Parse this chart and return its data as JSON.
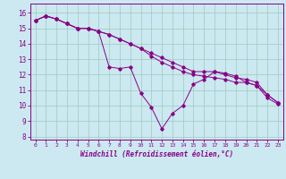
{
  "title": "",
  "xlabel": "Windchill (Refroidissement éolien,°C)",
  "background_color": "#cce8f0",
  "line_color": "#880088",
  "grid_color": "#99ccbb",
  "xlim": [
    -0.5,
    23.5
  ],
  "ylim": [
    7.8,
    16.6
  ],
  "yticks": [
    8,
    9,
    10,
    11,
    12,
    13,
    14,
    15,
    16
  ],
  "xticks": [
    0,
    1,
    2,
    3,
    4,
    5,
    6,
    7,
    8,
    9,
    10,
    11,
    12,
    13,
    14,
    15,
    16,
    17,
    18,
    19,
    20,
    21,
    22,
    23
  ],
  "series1_x": [
    0,
    1,
    2,
    3,
    4,
    5,
    6,
    7,
    8,
    9,
    10,
    11,
    12,
    13,
    14,
    15,
    16,
    17,
    18,
    19,
    20,
    21,
    22,
    23
  ],
  "series1_y": [
    15.5,
    15.8,
    15.6,
    15.3,
    15.0,
    15.0,
    14.8,
    12.5,
    12.4,
    12.5,
    10.8,
    9.9,
    8.5,
    9.5,
    10.0,
    11.4,
    11.7,
    12.2,
    12.1,
    11.9,
    11.5,
    11.3,
    10.7,
    10.2
  ],
  "series2_x": [
    0,
    1,
    2,
    3,
    4,
    5,
    6,
    7,
    8,
    9,
    10,
    11,
    12,
    13,
    14,
    15,
    16,
    17,
    18,
    19,
    20,
    21,
    22,
    23
  ],
  "series2_y": [
    15.5,
    15.8,
    15.6,
    15.3,
    15.0,
    15.0,
    14.8,
    14.6,
    14.3,
    14.0,
    13.7,
    13.4,
    13.1,
    12.8,
    12.5,
    12.2,
    12.2,
    12.2,
    12.0,
    11.8,
    11.7,
    11.5,
    10.7,
    10.2
  ],
  "series3_x": [
    0,
    1,
    2,
    3,
    4,
    5,
    6,
    7,
    8,
    9,
    10,
    11,
    12,
    13,
    14,
    15,
    16,
    17,
    18,
    19,
    20,
    21,
    22,
    23
  ],
  "series3_y": [
    15.5,
    15.8,
    15.6,
    15.3,
    15.0,
    15.0,
    14.8,
    14.6,
    14.3,
    14.0,
    13.7,
    13.2,
    12.8,
    12.5,
    12.2,
    12.0,
    11.9,
    11.8,
    11.7,
    11.5,
    11.5,
    11.3,
    10.5,
    10.1
  ]
}
